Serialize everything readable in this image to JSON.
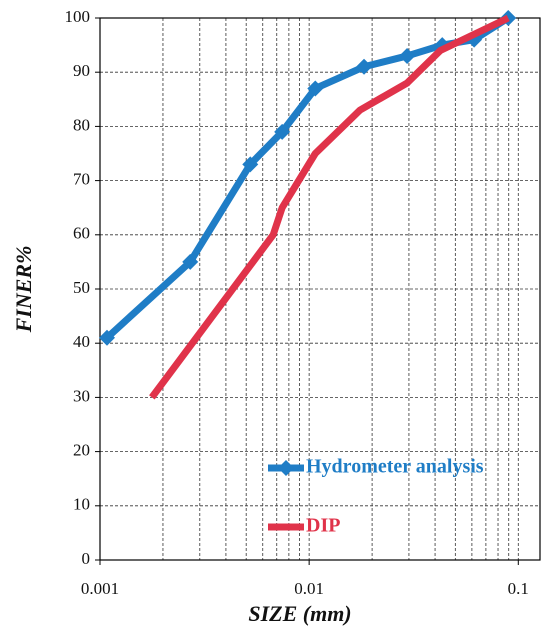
{
  "chart_data": {
    "type": "line",
    "xlabel": "SIZE (mm)",
    "ylabel": "FINER%",
    "xscale": "log",
    "grid": true,
    "legend": "lower right",
    "xlim": [
      0.001,
      0.127
    ],
    "xticks": [
      0.001,
      0.01,
      0.1
    ],
    "ylim": [
      0,
      100
    ],
    "yticks": [
      0,
      10,
      20,
      30,
      40,
      50,
      60,
      70,
      80,
      90,
      100
    ],
    "series": [
      {
        "name": "Hydrometer analysis",
        "color": "#1f7dc6",
        "marker": "diamond",
        "x": [
          0.00108,
          0.0027,
          0.00523,
          0.00743,
          0.0107,
          0.0183,
          0.0294,
          0.0433,
          0.0615,
          0.0895
        ],
        "values": [
          41,
          55,
          73,
          79,
          87,
          91,
          93,
          95,
          96,
          100
        ]
      },
      {
        "name": "DIP",
        "color": "#e0334a",
        "marker": "none",
        "x": [
          0.00177,
          0.00673,
          0.00743,
          0.0107,
          0.0175,
          0.0294,
          0.0424,
          0.0895
        ],
        "values": [
          30,
          60,
          65,
          75,
          83,
          88,
          94,
          100
        ]
      }
    ]
  }
}
